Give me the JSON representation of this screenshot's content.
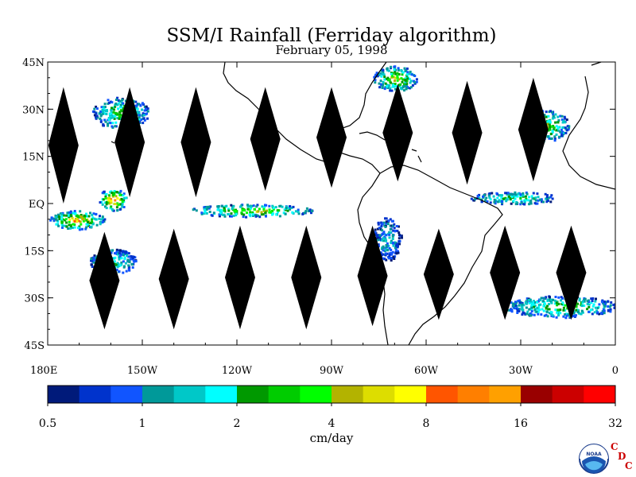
{
  "title": "SSM/I Rainfall (Ferriday algorithm)",
  "subtitle": "February 05, 1998",
  "map": {
    "lon_range": [
      180,
      360
    ],
    "lat_range": [
      -45,
      45
    ],
    "lat_ticks": [
      {
        "value": 45,
        "label": "45N"
      },
      {
        "value": 30,
        "label": "30N"
      },
      {
        "value": 15,
        "label": "15N"
      },
      {
        "value": 0,
        "label": "EQ"
      },
      {
        "value": -15,
        "label": "15S"
      },
      {
        "value": -30,
        "label": "30S"
      },
      {
        "value": -45,
        "label": "45S"
      }
    ],
    "lon_ticks": [
      {
        "value": 180,
        "label": "180E"
      },
      {
        "value": 210,
        "label": "150W"
      },
      {
        "value": 240,
        "label": "120W"
      },
      {
        "value": 270,
        "label": "90W"
      },
      {
        "value": 300,
        "label": "60W"
      },
      {
        "value": 330,
        "label": "30W"
      },
      {
        "value": 360,
        "label": "0"
      }
    ]
  },
  "colorbar": {
    "unit": "cm/day",
    "colors": [
      "#001a7a",
      "#0033cc",
      "#1155ff",
      "#009999",
      "#00c8c8",
      "#00ffff",
      "#009900",
      "#00cc00",
      "#00ff00",
      "#b3b300",
      "#dddd00",
      "#ffff00",
      "#ff5500",
      "#ff7f00",
      "#ffa000",
      "#990000",
      "#cc0000",
      "#ff0000"
    ],
    "labels": [
      "0.5",
      "1",
      "2",
      "4",
      "8",
      "16",
      "32"
    ]
  },
  "logo": {
    "text": "NOAA",
    "letters": [
      "C",
      "D",
      "C"
    ],
    "accent": "#cc0000"
  },
  "chart_data": {
    "type": "heatmap",
    "title": "SSM/I Rainfall (Ferriday algorithm)",
    "subtitle": "February 05, 1998",
    "unit": "cm/day",
    "scale": "log2",
    "color_levels": [
      0.5,
      1,
      2,
      4,
      8,
      16,
      32
    ],
    "rain_bands": [
      {
        "lon": [
          180,
          198
        ],
        "lat": [
          -8,
          -2
        ],
        "level": 12
      },
      {
        "lon": [
          196,
          205
        ],
        "lat": [
          -2,
          5
        ],
        "level": 14
      },
      {
        "lon": [
          225,
          264
        ],
        "lat": [
          -4,
          0
        ],
        "level": 10
      },
      {
        "lon": [
          194,
          212
        ],
        "lat": [
          24,
          34
        ],
        "level": 8
      },
      {
        "lon": [
          283,
          297
        ],
        "lat": [
          36,
          44
        ],
        "level": 10
      },
      {
        "lon": [
          330,
          345
        ],
        "lat": [
          20,
          30
        ],
        "level": 9
      },
      {
        "lon": [
          314,
          342
        ],
        "lat": [
          0,
          4
        ],
        "level": 7
      },
      {
        "lon": [
          325,
          360
        ],
        "lat": [
          -36,
          -29
        ],
        "level": 8
      },
      {
        "lon": [
          193,
          208
        ],
        "lat": [
          -22,
          -14
        ],
        "level": 6
      },
      {
        "lon": [
          283,
          292
        ],
        "lat": [
          -18,
          -4
        ],
        "level": 4
      }
    ],
    "swath_gaps": [
      {
        "lon": 185,
        "lat_top": 37,
        "lat_bottom": 0
      },
      {
        "lon": 206,
        "lat_top": 37,
        "lat_bottom": 2
      },
      {
        "lon": 227,
        "lat_top": 37,
        "lat_bottom": 2
      },
      {
        "lon": 249,
        "lat_top": 37,
        "lat_bottom": 4
      },
      {
        "lon": 270,
        "lat_top": 37,
        "lat_bottom": 5
      },
      {
        "lon": 291,
        "lat_top": 38,
        "lat_bottom": 7
      },
      {
        "lon": 313,
        "lat_top": 39,
        "lat_bottom": 6
      },
      {
        "lon": 334,
        "lat_top": 40,
        "lat_bottom": 7
      },
      {
        "lon": 198,
        "lat_top": -9,
        "lat_bottom": -40
      },
      {
        "lon": 220,
        "lat_top": -8,
        "lat_bottom": -40
      },
      {
        "lon": 241,
        "lat_top": -7,
        "lat_bottom": -40
      },
      {
        "lon": 262,
        "lat_top": -7,
        "lat_bottom": -40
      },
      {
        "lon": 283,
        "lat_top": -7,
        "lat_bottom": -39
      },
      {
        "lon": 304,
        "lat_top": -8,
        "lat_bottom": -37
      },
      {
        "lon": 325,
        "lat_top": -7,
        "lat_bottom": -37
      },
      {
        "lon": 346,
        "lat_top": -7,
        "lat_bottom": -37
      }
    ],
    "grid": false
  }
}
